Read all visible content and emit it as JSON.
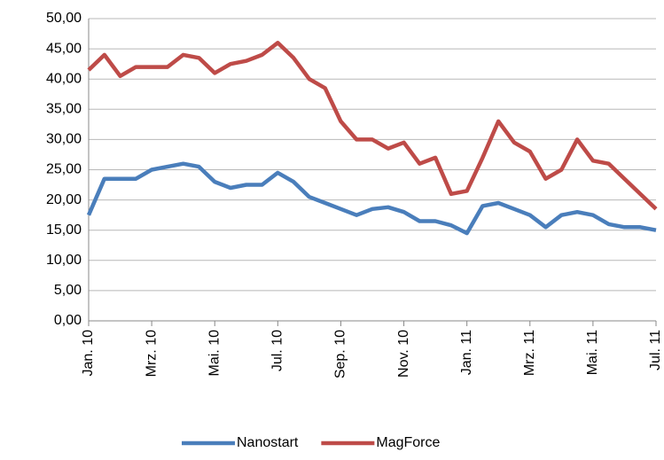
{
  "chart_data": {
    "type": "line",
    "categories": [
      "Jan. 10",
      null,
      null,
      null,
      "Mrz. 10",
      null,
      null,
      null,
      "Mai. 10",
      null,
      null,
      null,
      "Jul. 10",
      null,
      null,
      null,
      "Sep. 10",
      null,
      null,
      null,
      "Nov. 10",
      null,
      null,
      null,
      "Jan. 11",
      null,
      null,
      null,
      "Mrz. 11",
      null,
      null,
      null,
      "Mai. 11",
      null,
      null,
      null,
      "Jul. 11"
    ],
    "series": [
      {
        "name": "Nanostart",
        "color": "#4a7ebb",
        "values": [
          17.5,
          23.5,
          23.5,
          23.5,
          25,
          25.5,
          26,
          25.5,
          23,
          22,
          22.5,
          22.5,
          24.5,
          23,
          20.5,
          19.5,
          18.5,
          17.5,
          18.5,
          18.8,
          18,
          16.5,
          16.5,
          15.8,
          14.5,
          19,
          19.5,
          18.5,
          17.5,
          15.5,
          17.5,
          18,
          17.5,
          16,
          15.5,
          15.5,
          15
        ]
      },
      {
        "name": "MagForce",
        "color": "#be4b48",
        "values": [
          41.5,
          44,
          40.5,
          42,
          42,
          42,
          44,
          43.5,
          41,
          42.5,
          43,
          44,
          46,
          43.5,
          40,
          38.5,
          33,
          30,
          30,
          28.5,
          29.5,
          26,
          27,
          21,
          21.5,
          27,
          33,
          29.5,
          28,
          23.5,
          25,
          30,
          26.5,
          26,
          23.5,
          21,
          18.5
        ]
      }
    ],
    "ylim": [
      0,
      50
    ],
    "yticks": [
      {
        "value": 0,
        "label": "0,00"
      },
      {
        "value": 5,
        "label": "5,00"
      },
      {
        "value": 10,
        "label": "10,00"
      },
      {
        "value": 15,
        "label": "15,00"
      },
      {
        "value": 20,
        "label": "20,00"
      },
      {
        "value": 25,
        "label": "25,00"
      },
      {
        "value": 30,
        "label": "30,00"
      },
      {
        "value": 35,
        "label": "35,00"
      },
      {
        "value": 40,
        "label": "40,00"
      },
      {
        "value": 45,
        "label": "45,00"
      },
      {
        "value": 50,
        "label": "50,00"
      }
    ],
    "grid": true,
    "legend": "bottom"
  }
}
